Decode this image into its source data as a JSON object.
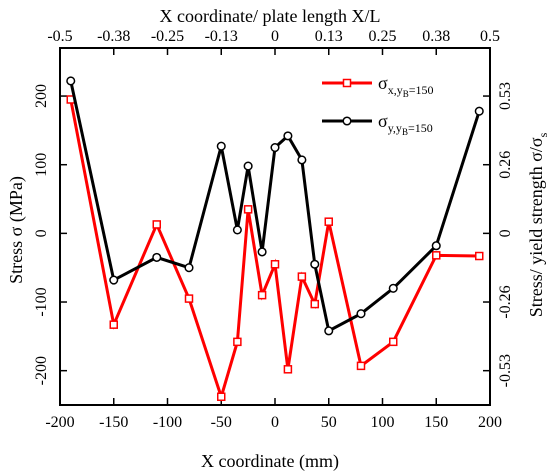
{
  "chart_data": {
    "type": "line",
    "title": "",
    "xlabel": "X coordinate (mm)",
    "ylabel": "Stress σ (MPa)",
    "top_xlabel": "X coordinate/ plate length X/L",
    "right_ylabel": "Stress/ yield strength σ/σ",
    "right_ylabel_sub": "s",
    "xlim": [
      -200,
      200
    ],
    "ylim": [
      -250,
      270
    ],
    "x_ticks": [
      "-200",
      "-150",
      "-100",
      "-50",
      "0",
      "50",
      "100",
      "150",
      "200"
    ],
    "x_tick_values": [
      -200,
      -150,
      -100,
      -50,
      0,
      50,
      100,
      150,
      200
    ],
    "y_ticks": [
      "-200",
      "-100",
      "0",
      "100",
      "200"
    ],
    "y_tick_values": [
      -200,
      -100,
      0,
      100,
      200
    ],
    "top_ticks": [
      "-0.5",
      "-0.38",
      "-0.25",
      "-0.13",
      "0",
      "0.13",
      "0.25",
      "0.38",
      "0.5"
    ],
    "right_ticks": [
      "-0.53",
      "-0.26",
      "0",
      "0.26",
      "0.53"
    ],
    "legend_position": "top-right",
    "grid": false,
    "series": [
      {
        "name": "σ",
        "subscript": "x,y",
        "subscript2": "B",
        "suffix": "=150",
        "color": "#ff0000",
        "marker": "square",
        "x": [
          -190,
          -150,
          -110,
          -80,
          -50,
          -35,
          -25,
          -12,
          0,
          12,
          25,
          37,
          50,
          80,
          110,
          150,
          190
        ],
        "y": [
          195,
          -133,
          13,
          -95,
          -238,
          -158,
          35,
          -90,
          -45,
          -198,
          -63,
          -103,
          17,
          -193,
          -158,
          -32,
          -33
        ]
      },
      {
        "name": "σ",
        "subscript": "y,y",
        "subscript2": "B",
        "suffix": "=150",
        "color": "#000000",
        "marker": "circle",
        "x": [
          -190,
          -150,
          -110,
          -80,
          -50,
          -35,
          -25,
          -12,
          0,
          12,
          25,
          37,
          50,
          80,
          110,
          150,
          190
        ],
        "y": [
          222,
          -68,
          -35,
          -50,
          127,
          5,
          98,
          -27,
          125,
          142,
          107,
          -45,
          -142,
          -117,
          -80,
          -18,
          178
        ]
      }
    ]
  }
}
